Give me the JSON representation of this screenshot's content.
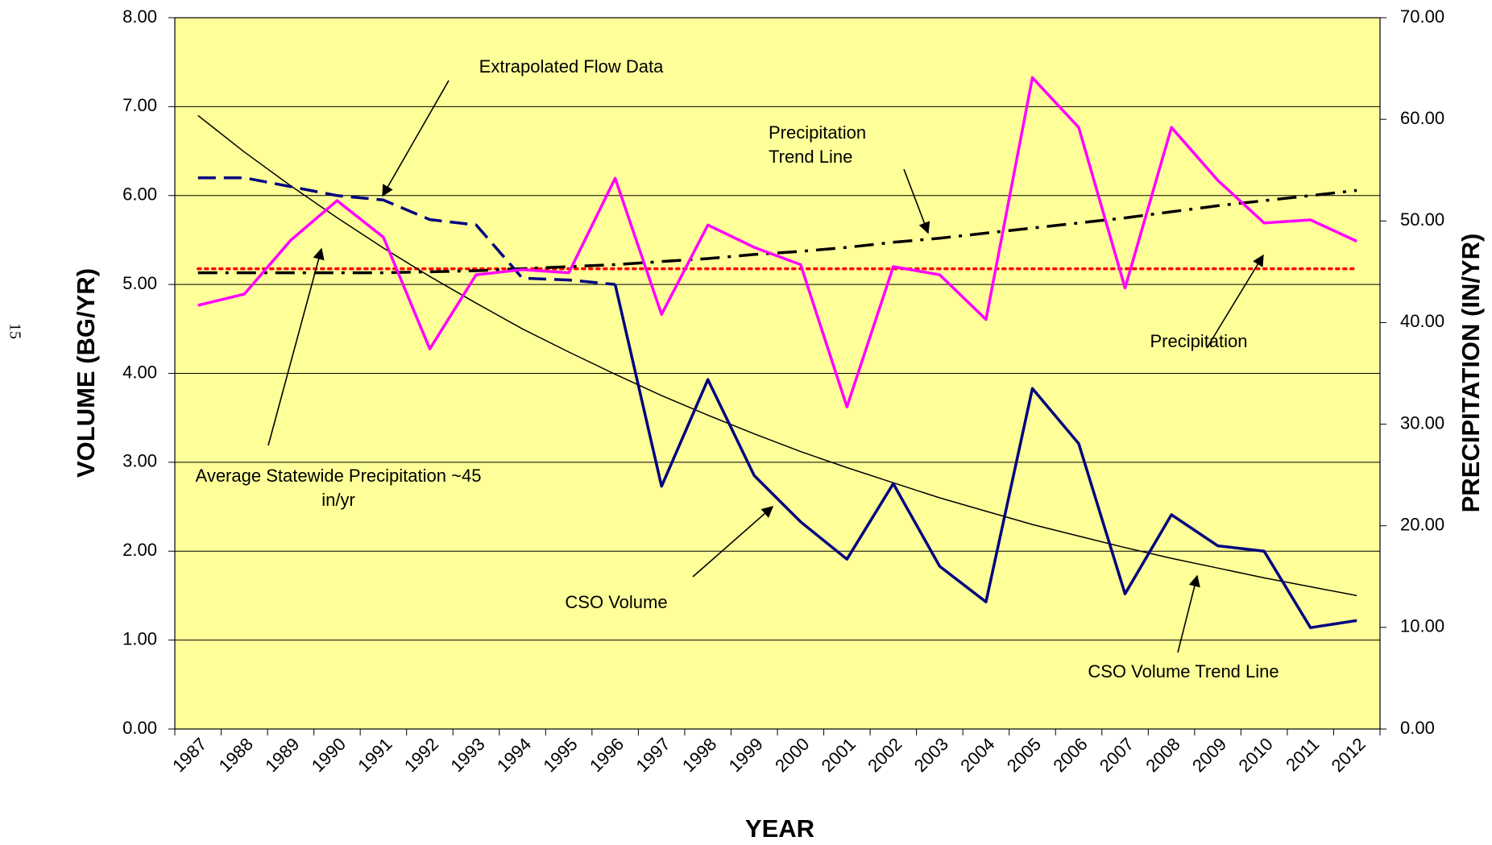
{
  "page_number": "15",
  "chart_data": {
    "type": "line",
    "xlabel": "YEAR",
    "ylabel": "VOLUME (BG/YR)",
    "y2label": "PRECIPITATION (IN/YR)",
    "background": "#ffff99",
    "grid": true,
    "categories": [
      "1987",
      "1988",
      "1989",
      "1990",
      "1991",
      "1992",
      "1993",
      "1994",
      "1995",
      "1996",
      "1997",
      "1998",
      "1999",
      "2000",
      "2001",
      "2002",
      "2003",
      "2004",
      "2005",
      "2006",
      "2007",
      "2008",
      "2009",
      "2010",
      "2011",
      "2012"
    ],
    "ylim": [
      0,
      8
    ],
    "yticks": [
      {
        "value": 0,
        "label": "0.00"
      },
      {
        "value": 1,
        "label": "1.00"
      },
      {
        "value": 2,
        "label": "2.00"
      },
      {
        "value": 3,
        "label": "3.00"
      },
      {
        "value": 4,
        "label": "4.00"
      },
      {
        "value": 5,
        "label": "5.00"
      },
      {
        "value": 6,
        "label": "6.00"
      },
      {
        "value": 7,
        "label": "7.00"
      },
      {
        "value": 8,
        "label": "8.00"
      }
    ],
    "y2lim": [
      0,
      70
    ],
    "y2ticks": [
      {
        "value": 0,
        "label": "0.00"
      },
      {
        "value": 10,
        "label": "10.00"
      },
      {
        "value": 20,
        "label": "20.00"
      },
      {
        "value": 30,
        "label": "30.00"
      },
      {
        "value": 40,
        "label": "40.00"
      },
      {
        "value": 50,
        "label": "50.00"
      },
      {
        "value": 60,
        "label": "60.00"
      },
      {
        "value": 70,
        "label": "70.00"
      }
    ],
    "series": [
      {
        "name": "Extrapolated Flow Data",
        "color": "#000080",
        "line_style": "dashed",
        "values": [
          6.2,
          6.2,
          6.1,
          6.0,
          5.95,
          5.73,
          5.67,
          5.07,
          5.05,
          5.0,
          null,
          null,
          null,
          null,
          null,
          null,
          null,
          null,
          null,
          null,
          null,
          null,
          null,
          null,
          null,
          null
        ]
      },
      {
        "name": "CSO Volume",
        "color": "#000080",
        "line_style": "solid",
        "values": [
          null,
          null,
          null,
          null,
          null,
          null,
          null,
          null,
          null,
          5.0,
          2.73,
          3.93,
          2.85,
          2.33,
          1.91,
          2.76,
          1.83,
          1.43,
          3.83,
          3.21,
          1.52,
          2.41,
          2.06,
          2.0,
          1.14,
          1.22
        ]
      },
      {
        "name": "CSO Volume Trend Line",
        "color": "#000000",
        "line_style": "thin",
        "values": [
          6.9,
          6.49,
          6.11,
          5.75,
          5.41,
          5.09,
          4.79,
          4.5,
          4.24,
          3.99,
          3.75,
          3.53,
          3.32,
          3.12,
          2.94,
          2.77,
          2.6,
          2.45,
          2.3,
          2.17,
          2.04,
          1.92,
          1.81,
          1.7,
          1.6,
          1.5
        ]
      },
      {
        "name": "Precipitation",
        "color": "#ff00ff",
        "line_style": "solid",
        "axis": "y2",
        "values": [
          41.7,
          42.8,
          48.1,
          52.0,
          48.4,
          37.4,
          44.7,
          45.2,
          44.9,
          54.2,
          40.8,
          49.6,
          47.4,
          45.7,
          31.7,
          45.5,
          44.7,
          40.3,
          64.1,
          59.2,
          43.4,
          59.2,
          54.0,
          49.8,
          50.1,
          48.0
        ]
      },
      {
        "name": "Precipitation Trend Line",
        "color": "#000000",
        "line_style": "dashdot",
        "axis": "y2",
        "values": [
          44.9,
          44.9,
          44.9,
          44.9,
          44.9,
          45.0,
          45.1,
          45.3,
          45.5,
          45.7,
          46.0,
          46.3,
          46.7,
          47.0,
          47.4,
          47.9,
          48.3,
          48.8,
          49.3,
          49.8,
          50.3,
          50.9,
          51.5,
          52.0,
          52.5,
          53.0
        ]
      },
      {
        "name": "Average Statewide Precipitation ~45 in/yr",
        "color": "#ff0000",
        "line_style": "dotted",
        "axis": "y2",
        "values": [
          45.3,
          45.3,
          45.3,
          45.3,
          45.3,
          45.3,
          45.3,
          45.3,
          45.3,
          45.3,
          45.3,
          45.3,
          45.3,
          45.3,
          45.3,
          45.3,
          45.3,
          45.3,
          45.3,
          45.3,
          45.3,
          45.3,
          45.3,
          45.3,
          45.3,
          45.3
        ]
      }
    ]
  }
}
